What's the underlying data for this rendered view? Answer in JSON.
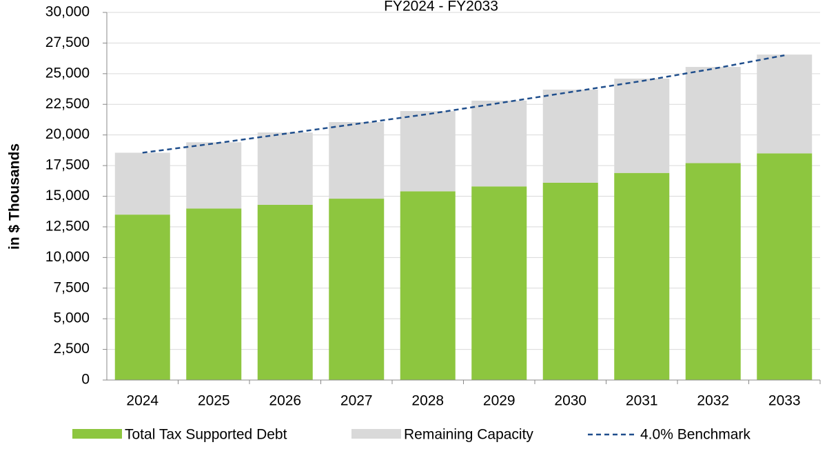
{
  "chart_data": {
    "type": "stacked_bar_line",
    "title": "FY2024 - FY2033",
    "y_label": "in $ Thousands",
    "categories": [
      "2024",
      "2025",
      "2026",
      "2027",
      "2028",
      "2029",
      "2030",
      "2031",
      "2032",
      "2033"
    ],
    "series": [
      {
        "name": "Total Tax Supported Debt",
        "color": "#8dc63f",
        "kind": "bar",
        "values": [
          13500,
          14000,
          14300,
          14800,
          15400,
          15800,
          16100,
          16900,
          17700,
          18500
        ]
      },
      {
        "name": "Remaining Capacity",
        "color": "#d9d9d9",
        "kind": "bar",
        "values": [
          5050,
          5400,
          5900,
          6250,
          6550,
          7000,
          7600,
          7700,
          7850,
          8060
        ]
      },
      {
        "name": "4.0% Benchmark",
        "color": "#1f4e8c",
        "kind": "line",
        "dashed": true,
        "values": [
          18550,
          19300,
          20100,
          20900,
          21700,
          22600,
          23500,
          24400,
          25400,
          26500
        ]
      }
    ],
    "ylim": [
      0,
      30000
    ],
    "yticks": [
      0,
      {
        "value": 2500,
        "label": "2,500"
      },
      {
        "value": 5000,
        "label": "5,000"
      },
      {
        "value": 7500,
        "label": "7,500"
      },
      {
        "value": 10000,
        "label": "10,000"
      },
      {
        "value": 12500,
        "label": "12,500"
      },
      {
        "value": 15000,
        "label": "15,000"
      },
      {
        "value": 17500,
        "label": "17,500"
      },
      {
        "value": 20000,
        "label": "20,000"
      },
      {
        "value": 22500,
        "label": "22,500"
      },
      {
        "value": 25000,
        "label": "25,000"
      },
      {
        "value": 27500,
        "label": "27,500"
      },
      {
        "value": 30000,
        "label": "30,000"
      }
    ],
    "grid": true,
    "legend": "bottom"
  }
}
